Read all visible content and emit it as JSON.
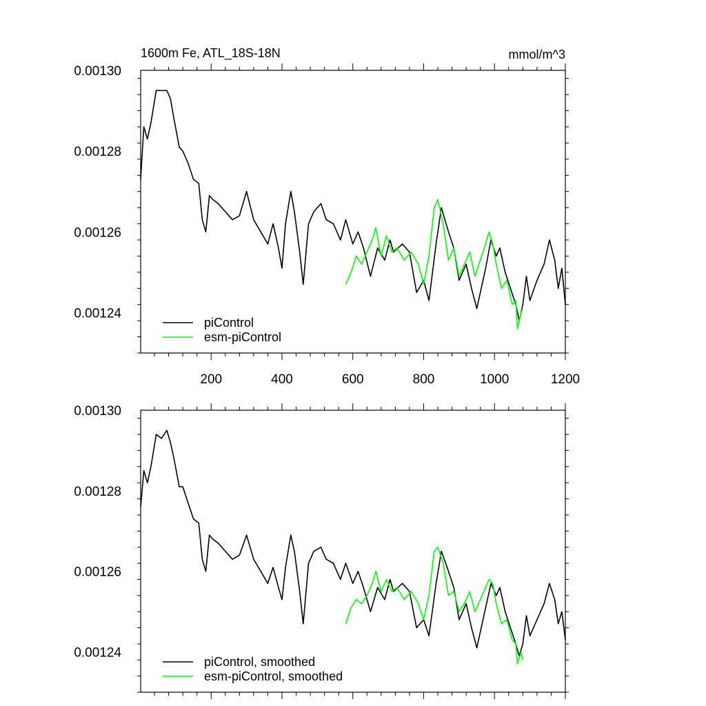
{
  "colors": {
    "piControl": "#000000",
    "esm_piControl": "#00ff00",
    "axis": "#000000",
    "background": "#ffffff"
  },
  "header": {
    "title": "1600m Fe, ATL_18S-18N",
    "units": "mmol/m^3"
  },
  "chart_data": [
    {
      "type": "line",
      "title": "1600m Fe, ATL_18S-18N",
      "units": "mmol/m^3",
      "xlim": [
        1,
        1200
      ],
      "ylim": [
        0.00123,
        0.0013
      ],
      "xticks": [
        200,
        400,
        600,
        800,
        1000,
        1200
      ],
      "xtick_labels": [
        "200",
        "400",
        "600",
        "800",
        "1000",
        "1200"
      ],
      "yticks": [
        0.0013,
        0.00128,
        0.00126,
        0.00124
      ],
      "ytick_labels": [
        "0.00130",
        "0.00128",
        "0.00126",
        "0.00124"
      ],
      "legend_position": "bottom-left",
      "series": [
        {
          "name": "piControl",
          "color": "#000000",
          "x": [
            1,
            10,
            20,
            30,
            45,
            60,
            75,
            85,
            95,
            110,
            120,
            135,
            150,
            165,
            175,
            185,
            195,
            205,
            220,
            240,
            260,
            280,
            300,
            320,
            340,
            360,
            375,
            390,
            400,
            410,
            425,
            435,
            450,
            460,
            475,
            490,
            510,
            525,
            545,
            565,
            580,
            600,
            615,
            630,
            650,
            670,
            690,
            705,
            715,
            740,
            760,
            780,
            800,
            815,
            835,
            850,
            870,
            885,
            900,
            920,
            935,
            950,
            960,
            975,
            990,
            1005,
            1015,
            1030,
            1045,
            1060,
            1070,
            1080,
            1090,
            1100,
            1120,
            1140,
            1155,
            1170,
            1180,
            1190,
            1200
          ],
          "values": [
            0.001273,
            0.001286,
            0.001283,
            0.001287,
            0.001295,
            0.001295,
            0.001295,
            0.001293,
            0.001288,
            0.001281,
            0.00128,
            0.001277,
            0.001273,
            0.001272,
            0.001263,
            0.00126,
            0.001269,
            0.001268,
            0.001267,
            0.001265,
            0.001263,
            0.001264,
            0.00127,
            0.001263,
            0.00126,
            0.001257,
            0.001262,
            0.001256,
            0.001251,
            0.001262,
            0.00127,
            0.001265,
            0.001255,
            0.001247,
            0.001262,
            0.001265,
            0.001267,
            0.001263,
            0.001262,
            0.001258,
            0.001263,
            0.001257,
            0.00126,
            0.001256,
            0.001249,
            0.001256,
            0.001253,
            0.001258,
            0.001255,
            0.001257,
            0.001255,
            0.001245,
            0.001248,
            0.001243,
            0.001257,
            0.001266,
            0.00126,
            0.001256,
            0.001248,
            0.001252,
            0.001246,
            0.001241,
            0.001245,
            0.001251,
            0.001258,
            0.001254,
            0.001256,
            0.00125,
            0.001246,
            0.001242,
            0.001238,
            0.001242,
            0.001249,
            0.001243,
            0.001248,
            0.001252,
            0.001258,
            0.001253,
            0.001246,
            0.001251,
            0.001242
          ]
        },
        {
          "name": "esm-piControl",
          "color": "#00ff00",
          "x": [
            580,
            595,
            610,
            625,
            640,
            655,
            665,
            680,
            695,
            710,
            725,
            745,
            765,
            785,
            800,
            815,
            830,
            840,
            855,
            870,
            885,
            900,
            915,
            930,
            945,
            960,
            975,
            985,
            995,
            1005,
            1020,
            1035,
            1050,
            1060,
            1065,
            1075,
            1080
          ],
          "values": [
            0.001247,
            0.00125,
            0.001254,
            0.001252,
            0.001255,
            0.001258,
            0.001261,
            0.001254,
            0.001259,
            0.001255,
            0.001256,
            0.001253,
            0.001255,
            0.001252,
            0.001247,
            0.001254,
            0.001266,
            0.001268,
            0.001262,
            0.001253,
            0.001256,
            0.001249,
            0.001252,
            0.001255,
            0.001249,
            0.001253,
            0.001257,
            0.00126,
            0.001257,
            0.001252,
            0.001246,
            0.001248,
            0.001242,
            0.001243,
            0.001236,
            0.00124,
            0.001241
          ]
        }
      ]
    },
    {
      "type": "line",
      "title": "",
      "xlim": [
        1,
        1200
      ],
      "ylim": [
        0.00123,
        0.0013
      ],
      "xticks": [
        200,
        400,
        600,
        800,
        1000,
        1200
      ],
      "xtick_labels": [],
      "yticks": [
        0.0013,
        0.00128,
        0.00126,
        0.00124
      ],
      "ytick_labels": [
        "0.00130",
        "0.00128",
        "0.00126",
        "0.00124"
      ],
      "legend_position": "bottom-left",
      "series": [
        {
          "name": "piControl, smoothed",
          "color": "#000000",
          "x": [
            1,
            10,
            20,
            30,
            45,
            60,
            75,
            85,
            95,
            110,
            120,
            135,
            150,
            165,
            175,
            185,
            195,
            205,
            220,
            240,
            260,
            280,
            300,
            320,
            340,
            360,
            375,
            390,
            400,
            410,
            425,
            435,
            450,
            460,
            475,
            490,
            510,
            525,
            545,
            565,
            580,
            600,
            615,
            630,
            650,
            670,
            690,
            705,
            715,
            740,
            760,
            780,
            800,
            815,
            835,
            850,
            870,
            885,
            900,
            920,
            935,
            950,
            960,
            975,
            990,
            1005,
            1015,
            1030,
            1045,
            1060,
            1070,
            1080,
            1090,
            1100,
            1120,
            1140,
            1155,
            1170,
            1180,
            1190,
            1200
          ],
          "values": [
            0.001276,
            0.001285,
            0.001282,
            0.001286,
            0.001294,
            0.001293,
            0.001295,
            0.001292,
            0.001288,
            0.001281,
            0.001281,
            0.001277,
            0.001273,
            0.001272,
            0.001263,
            0.00126,
            0.001269,
            0.001268,
            0.001267,
            0.001265,
            0.001263,
            0.001264,
            0.001269,
            0.001263,
            0.00126,
            0.001257,
            0.001261,
            0.001256,
            0.001253,
            0.001261,
            0.001269,
            0.001265,
            0.001255,
            0.001247,
            0.001262,
            0.001265,
            0.001266,
            0.001263,
            0.001262,
            0.001258,
            0.001262,
            0.001257,
            0.00126,
            0.001256,
            0.00125,
            0.001256,
            0.001253,
            0.001258,
            0.001255,
            0.001257,
            0.001255,
            0.001246,
            0.001248,
            0.001244,
            0.001257,
            0.001265,
            0.00126,
            0.001256,
            0.001248,
            0.001252,
            0.001246,
            0.001241,
            0.001245,
            0.001251,
            0.001257,
            0.001254,
            0.001256,
            0.00125,
            0.001246,
            0.001242,
            0.001239,
            0.001242,
            0.001249,
            0.001244,
            0.001248,
            0.001252,
            0.001257,
            0.001253,
            0.001247,
            0.00125,
            0.001243
          ]
        },
        {
          "name": "esm-piControl, smoothed",
          "color": "#00ff00",
          "x": [
            580,
            595,
            610,
            625,
            640,
            655,
            665,
            680,
            695,
            710,
            725,
            745,
            765,
            785,
            800,
            815,
            830,
            840,
            855,
            870,
            885,
            900,
            915,
            930,
            945,
            960,
            975,
            985,
            995,
            1005,
            1020,
            1035,
            1050,
            1060,
            1065,
            1075,
            1080
          ],
          "values": [
            0.001247,
            0.001251,
            0.001253,
            0.001252,
            0.001254,
            0.001257,
            0.00126,
            0.001255,
            0.001258,
            0.001255,
            0.001256,
            0.001253,
            0.001255,
            0.001252,
            0.001248,
            0.001254,
            0.001265,
            0.001266,
            0.001262,
            0.001254,
            0.001255,
            0.00125,
            0.001252,
            0.001255,
            0.00125,
            0.001253,
            0.001256,
            0.001258,
            0.001257,
            0.001252,
            0.001247,
            0.001248,
            0.001243,
            0.001242,
            0.001237,
            0.00124,
            0.001238
          ]
        }
      ]
    }
  ]
}
